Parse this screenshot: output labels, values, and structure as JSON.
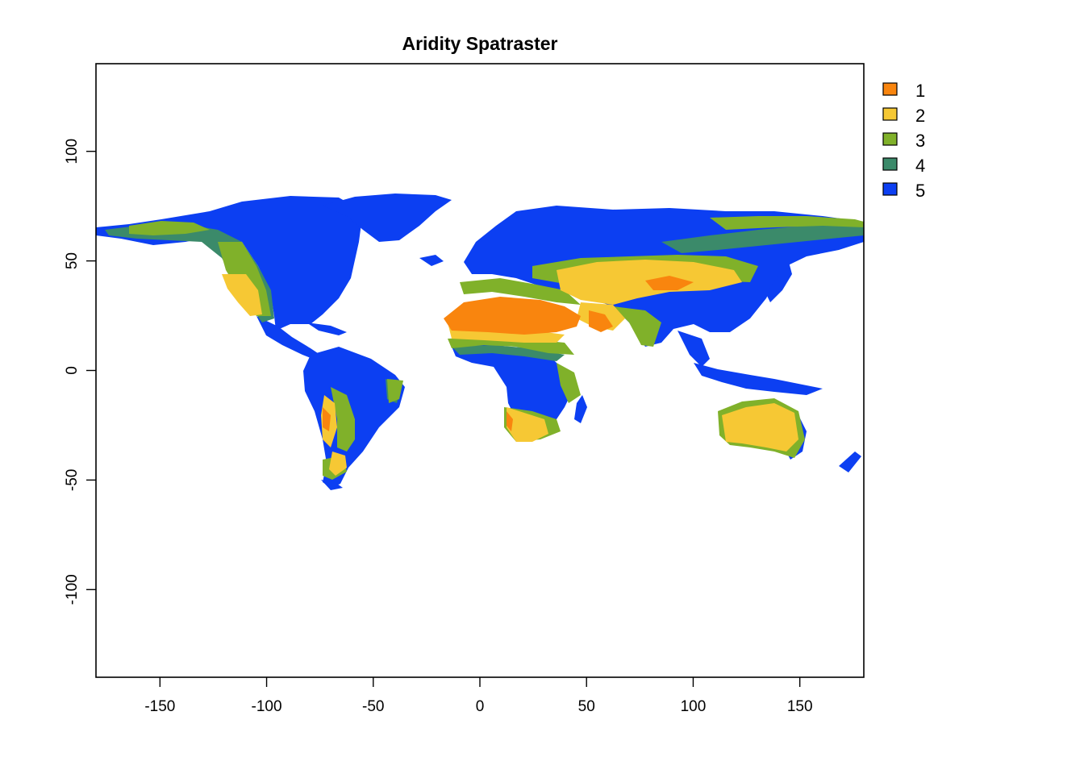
{
  "title": "Aridity Spatraster",
  "colors": {
    "class_1": "#F9850E",
    "class_2": "#F6C834",
    "class_3": "#80B12A",
    "class_4": "#3B8A6A",
    "class_5": "#0C3FF2"
  },
  "chart_data": {
    "type": "heatmap",
    "subtype": "raster-map",
    "title": "Aridity Spatraster",
    "xlabel": "",
    "ylabel": "",
    "xlim": [
      -180,
      180
    ],
    "ylim": [
      -140,
      140
    ],
    "x_ticks": [
      -150,
      -100,
      -50,
      0,
      50,
      100,
      150
    ],
    "y_ticks": [
      100,
      50,
      0,
      -50,
      -100
    ],
    "x_tick_labels": [
      "-150",
      "-100",
      "-50",
      "0",
      "50",
      "100",
      "150"
    ],
    "y_tick_labels": [
      "100",
      "50",
      "0",
      "-50",
      "-100"
    ],
    "legend": {
      "placement": "right",
      "entries": [
        {
          "label": "1",
          "color": "#F9850E"
        },
        {
          "label": "2",
          "color": "#F6C834"
        },
        {
          "label": "3",
          "color": "#80B12A"
        },
        {
          "label": "4",
          "color": "#3B8A6A"
        },
        {
          "label": "5",
          "color": "#0C3FF2"
        }
      ]
    },
    "grid": false
  }
}
